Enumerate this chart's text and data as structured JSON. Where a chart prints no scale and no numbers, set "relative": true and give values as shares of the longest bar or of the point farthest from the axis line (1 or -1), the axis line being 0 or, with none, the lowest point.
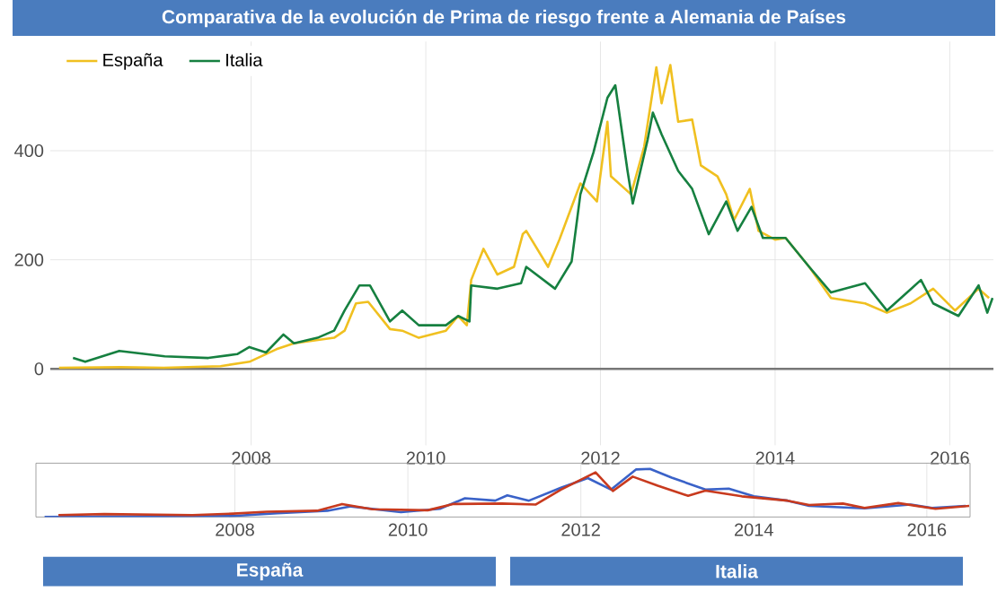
{
  "chart_data": [
    {
      "type": "line",
      "title": "Comparativa de la evolución de Prima de riesgo frente a Alemania de Países",
      "xlim": [
        2005.7,
        2016.5
      ],
      "xticks": [
        2008,
        2010,
        2012,
        2014,
        2016
      ],
      "ylim": [
        -140,
        600
      ],
      "yticks": [
        0,
        200,
        400
      ],
      "grid": true,
      "legend": "top left",
      "ref_lines": [
        {
          "axis": "y",
          "value": 0,
          "color": "#777777"
        }
      ],
      "series": [
        {
          "name": "España",
          "color": "#f0c020",
          "x": [
            2005.8,
            2006.5,
            2007.0,
            2007.65,
            2007.98,
            2008.29,
            2008.49,
            2008.95,
            2009.07,
            2009.2,
            2009.34,
            2009.59,
            2009.73,
            2009.92,
            2010.23,
            2010.37,
            2010.47,
            2010.52,
            2010.66,
            2010.82,
            2011.01,
            2011.11,
            2011.15,
            2011.4,
            2011.53,
            2011.77,
            2011.96,
            2012.08,
            2012.12,
            2012.35,
            2012.5,
            2012.64,
            2012.7,
            2012.8,
            2012.89,
            2013.05,
            2013.15,
            2013.34,
            2013.44,
            2013.53,
            2013.71,
            2013.81,
            2014.0,
            2014.12,
            2014.39,
            2014.64,
            2015.03,
            2015.28,
            2015.55,
            2015.81,
            2016.06,
            2016.33,
            2016.45
          ],
          "values": [
            2,
            3,
            2,
            5,
            13,
            36,
            47,
            57,
            70,
            120,
            123,
            73,
            70,
            57,
            70,
            97,
            80,
            163,
            220,
            173,
            187,
            247,
            253,
            187,
            237,
            340,
            307,
            453,
            353,
            320,
            407,
            553,
            487,
            557,
            453,
            457,
            373,
            353,
            320,
            273,
            330,
            253,
            237,
            240,
            187,
            130,
            120,
            103,
            120,
            147,
            107,
            147,
            130
          ]
        },
        {
          "name": "Italia",
          "color": "#168040",
          "x": [
            2005.96,
            2006.1,
            2006.49,
            2007.01,
            2007.51,
            2007.84,
            2007.98,
            2008.17,
            2008.37,
            2008.49,
            2008.76,
            2008.95,
            2009.07,
            2009.24,
            2009.36,
            2009.59,
            2009.73,
            2009.92,
            2010.23,
            2010.37,
            2010.5,
            2010.52,
            2010.82,
            2011.09,
            2011.15,
            2011.48,
            2011.67,
            2011.77,
            2011.92,
            2012.08,
            2012.17,
            2012.31,
            2012.37,
            2012.54,
            2012.6,
            2012.7,
            2012.89,
            2013.05,
            2013.24,
            2013.44,
            2013.57,
            2013.73,
            2013.86,
            2014.12,
            2014.39,
            2014.64,
            2015.03,
            2015.28,
            2015.67,
            2015.81,
            2016.1,
            2016.33,
            2016.43,
            2016.49
          ],
          "values": [
            20,
            13,
            33,
            23,
            20,
            27,
            40,
            30,
            63,
            47,
            57,
            70,
            107,
            153,
            153,
            87,
            107,
            80,
            80,
            97,
            87,
            153,
            147,
            157,
            187,
            147,
            197,
            320,
            397,
            497,
            520,
            363,
            303,
            420,
            470,
            430,
            363,
            330,
            247,
            307,
            253,
            297,
            240,
            240,
            187,
            140,
            157,
            107,
            163,
            120,
            97,
            153,
            103,
            130
          ]
        }
      ]
    },
    {
      "type": "line",
      "relative": true,
      "xlim": [
        2005.7,
        2016.5
      ],
      "xticks": [
        2008,
        2010,
        2012,
        2014,
        2016
      ],
      "grid": "x",
      "annotations": [
        "España",
        "Italia"
      ],
      "series": [
        {
          "color": "#3a62c8",
          "x": [
            2005.8,
            2007.98,
            2008.49,
            2009.07,
            2009.34,
            2009.92,
            2010.37,
            2010.66,
            2011.01,
            2011.15,
            2011.4,
            2011.77,
            2012.08,
            2012.35,
            2012.64,
            2012.8,
            2013.05,
            2013.44,
            2013.71,
            2014.0,
            2014.39,
            2014.64,
            2015.28,
            2015.81,
            2016.06,
            2016.45
          ],
          "values": [
            0.0,
            0.02,
            0.08,
            0.13,
            0.22,
            0.1,
            0.17,
            0.39,
            0.34,
            0.45,
            0.34,
            0.61,
            0.81,
            0.57,
            0.99,
            1.0,
            0.82,
            0.57,
            0.59,
            0.43,
            0.34,
            0.23,
            0.18,
            0.26,
            0.19,
            0.23
          ]
        },
        {
          "color": "#c83a1e",
          "x": [
            2005.96,
            2006.49,
            2007.51,
            2007.98,
            2008.37,
            2008.95,
            2009.24,
            2009.59,
            2010.23,
            2010.52,
            2011.09,
            2011.48,
            2011.77,
            2012.17,
            2012.37,
            2012.6,
            2012.89,
            2013.24,
            2013.44,
            2013.86,
            2014.39,
            2014.64,
            2015.03,
            2015.28,
            2015.67,
            2016.1,
            2016.49
          ],
          "values": [
            0.04,
            0.06,
            0.04,
            0.07,
            0.11,
            0.13,
            0.27,
            0.16,
            0.14,
            0.27,
            0.28,
            0.26,
            0.57,
            0.93,
            0.54,
            0.84,
            0.65,
            0.44,
            0.55,
            0.43,
            0.34,
            0.25,
            0.28,
            0.19,
            0.29,
            0.17,
            0.23
          ]
        }
      ]
    }
  ]
}
